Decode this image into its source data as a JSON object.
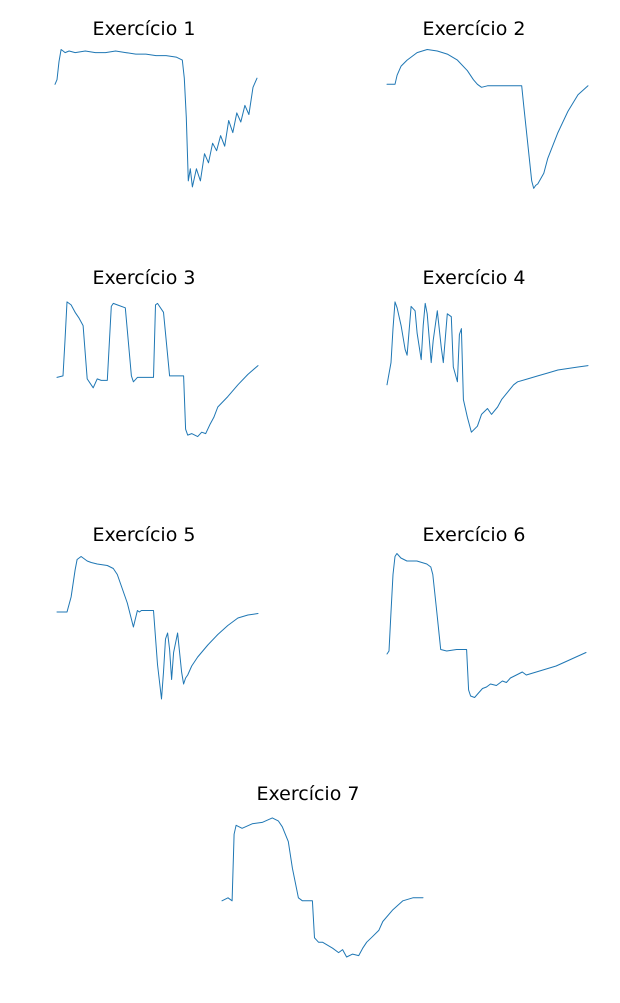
{
  "colors": {
    "line": "#1f77b4",
    "background": "#ffffff"
  },
  "chart_data": [
    {
      "type": "line",
      "title": "Exercício 1",
      "xlabel": "",
      "ylabel": "",
      "axes_visible": false,
      "grid": false,
      "xlim": [
        0,
        100
      ],
      "ylim": [
        0,
        100
      ],
      "x": [
        0,
        1,
        2,
        3,
        4,
        5,
        7,
        10,
        15,
        20,
        25,
        30,
        35,
        40,
        45,
        50,
        55,
        60,
        63,
        64,
        65,
        66,
        67,
        68,
        70,
        72,
        74,
        76,
        78,
        80,
        82,
        84,
        86,
        88,
        90,
        92,
        94,
        96,
        98,
        100
      ],
      "values": [
        74,
        77,
        89,
        97,
        96,
        95,
        96,
        95,
        96,
        95,
        95,
        96,
        95,
        94,
        94,
        93,
        93,
        92,
        90,
        78,
        52,
        10,
        18,
        6,
        18,
        10,
        28,
        22,
        35,
        30,
        40,
        33,
        50,
        42,
        55,
        49,
        60,
        54,
        72,
        78
      ]
    },
    {
      "type": "line",
      "title": "Exercício 2",
      "xlabel": "",
      "ylabel": "",
      "axes_visible": false,
      "grid": false,
      "xlim": [
        0,
        100
      ],
      "ylim": [
        0,
        100
      ],
      "x": [
        0,
        2,
        4,
        5,
        7,
        10,
        12,
        15,
        20,
        25,
        30,
        35,
        40,
        43,
        45,
        47,
        50,
        55,
        60,
        65,
        67,
        68,
        70,
        72,
        73,
        74,
        75,
        78,
        80,
        85,
        90,
        95,
        100
      ],
      "values": [
        74,
        74,
        74,
        80,
        86,
        90,
        92,
        95,
        97,
        96,
        94,
        90,
        83,
        77,
        74,
        72,
        73,
        73,
        73,
        73,
        73,
        60,
        35,
        10,
        5,
        7,
        8,
        15,
        25,
        42,
        56,
        67,
        73
      ]
    },
    {
      "type": "line",
      "title": "Exercício 3",
      "xlabel": "",
      "ylabel": "",
      "axes_visible": false,
      "grid": false,
      "xlim": [
        0,
        100
      ],
      "ylim": [
        0,
        100
      ],
      "x": [
        0,
        3,
        4,
        5,
        7,
        9,
        11,
        13,
        15,
        18,
        20,
        22,
        25,
        27,
        28,
        30,
        34,
        37,
        38,
        40,
        43,
        45,
        48,
        49,
        50,
        53,
        56,
        60,
        62,
        63,
        64,
        65,
        67,
        70,
        72,
        74,
        76,
        78,
        80,
        85,
        90,
        95,
        100
      ],
      "values": [
        45,
        46,
        70,
        96,
        94,
        89,
        85,
        80,
        44,
        38,
        44,
        43,
        43,
        93,
        95,
        94,
        92,
        46,
        42,
        45,
        45,
        45,
        45,
        94,
        95,
        89,
        46,
        46,
        46,
        46,
        10,
        6,
        7,
        5,
        8,
        7,
        13,
        18,
        25,
        32,
        40,
        47,
        53
      ]
    },
    {
      "type": "line",
      "title": "Exercício 4",
      "xlabel": "",
      "ylabel": "",
      "axes_visible": false,
      "grid": false,
      "xlim": [
        0,
        100
      ],
      "ylim": [
        0,
        100
      ],
      "x": [
        0,
        2,
        3,
        4,
        5,
        7,
        9,
        10,
        12,
        14,
        15,
        17,
        18,
        19,
        20,
        22,
        23,
        25,
        27,
        28,
        30,
        32,
        33,
        35,
        36,
        37,
        38,
        40,
        42,
        45,
        47,
        50,
        52,
        55,
        57,
        60,
        63,
        65,
        70,
        75,
        80,
        85,
        90,
        95,
        100
      ],
      "values": [
        40,
        55,
        78,
        96,
        92,
        80,
        64,
        60,
        93,
        90,
        75,
        57,
        80,
        95,
        88,
        55,
        70,
        90,
        65,
        55,
        88,
        86,
        52,
        42,
        74,
        78,
        30,
        18,
        8,
        12,
        20,
        24,
        20,
        25,
        30,
        35,
        40,
        42,
        44,
        46,
        48,
        50,
        51,
        52,
        53
      ]
    },
    {
      "type": "line",
      "title": "Exercício 5",
      "xlabel": "",
      "ylabel": "",
      "axes_visible": false,
      "grid": false,
      "xlim": [
        0,
        100
      ],
      "ylim": [
        0,
        100
      ],
      "x": [
        0,
        5,
        7,
        9,
        10,
        12,
        15,
        17,
        20,
        25,
        28,
        30,
        35,
        38,
        40,
        41,
        42,
        45,
        48,
        50,
        52,
        53,
        54,
        55,
        56,
        57,
        58,
        60,
        62,
        63,
        64,
        65,
        67,
        70,
        75,
        80,
        85,
        90,
        95,
        100
      ],
      "values": [
        60,
        60,
        70,
        88,
        95,
        97,
        94,
        93,
        92,
        91,
        89,
        85,
        66,
        50,
        61,
        60,
        61,
        61,
        61,
        25,
        2,
        20,
        42,
        46,
        35,
        15,
        33,
        46,
        20,
        12,
        16,
        18,
        24,
        30,
        38,
        45,
        51,
        56,
        58,
        59
      ]
    },
    {
      "type": "line",
      "title": "Exercício 6",
      "xlabel": "",
      "ylabel": "",
      "axes_visible": false,
      "grid": false,
      "xlim": [
        0,
        100
      ],
      "ylim": [
        0,
        100
      ],
      "x": [
        0,
        1,
        2,
        3,
        4,
        5,
        7,
        10,
        15,
        20,
        22,
        23,
        25,
        27,
        30,
        35,
        38,
        40,
        41,
        42,
        44,
        46,
        48,
        50,
        52,
        55,
        58,
        60,
        62,
        65,
        68,
        70,
        75,
        80,
        85,
        90,
        95,
        100
      ],
      "values": [
        32,
        34,
        60,
        85,
        97,
        99,
        96,
        94,
        94,
        92,
        90,
        85,
        60,
        35,
        34,
        35,
        35,
        35,
        8,
        4,
        3,
        6,
        9,
        10,
        12,
        11,
        14,
        13,
        16,
        18,
        20,
        18,
        20,
        22,
        24,
        27,
        30,
        33
      ]
    },
    {
      "type": "line",
      "title": "Exercício 7",
      "xlabel": "",
      "ylabel": "",
      "axes_visible": false,
      "grid": false,
      "xlim": [
        0,
        100
      ],
      "ylim": [
        0,
        100
      ],
      "x": [
        0,
        3,
        5,
        6,
        7,
        10,
        15,
        20,
        25,
        28,
        30,
        33,
        35,
        38,
        40,
        41,
        42,
        45,
        46,
        48,
        50,
        55,
        58,
        60,
        62,
        65,
        68,
        70,
        72,
        75,
        78,
        80,
        85,
        90,
        95,
        100
      ],
      "values": [
        40,
        42,
        40,
        85,
        91,
        89,
        92,
        93,
        96,
        94,
        90,
        80,
        62,
        42,
        40,
        40,
        40,
        40,
        15,
        12,
        12,
        8,
        5,
        7,
        2,
        4,
        3,
        8,
        12,
        16,
        20,
        26,
        34,
        40,
        42,
        42
      ]
    }
  ]
}
